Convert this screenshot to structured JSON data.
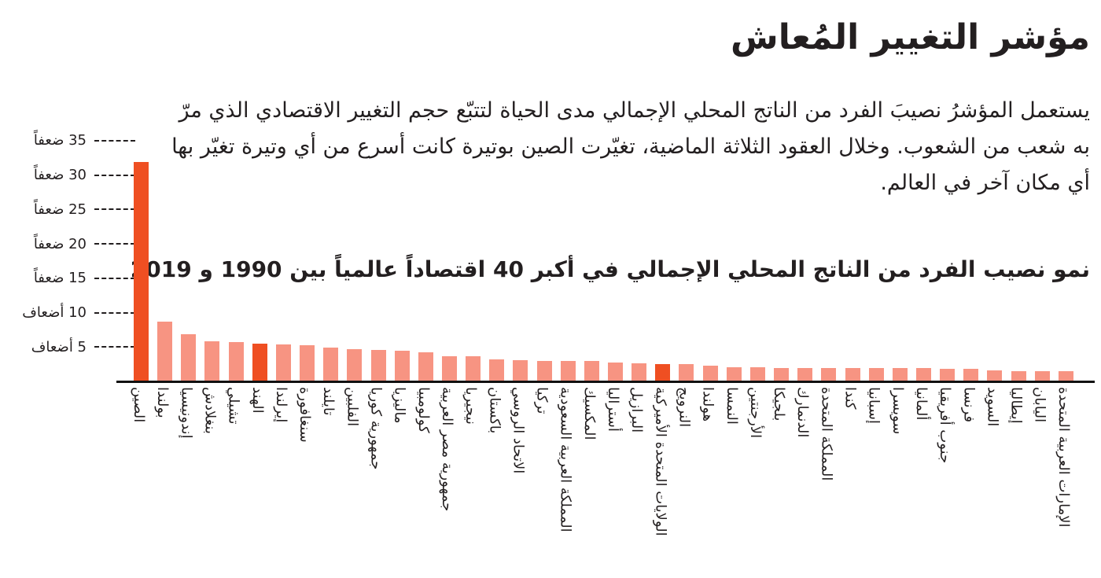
{
  "header": {
    "title": "مؤشر التغيير المُعاش",
    "body": "يستعمل المؤشرُ نصيبَ الفرد من الناتج المحلي الإجمالي مدى الحياة لتتبّع حجم التغيير الاقتصادي الذي مرّ به شعب من الشعوب. وخلال العقود الثلاثة الماضية، تغيّرت الصين بوتيرة كانت أسرع من أي وتيرة تغيّر بها أي مكان آخر في العالم.",
    "subtitle": "نمو نصيب الفرد من الناتج المحلي الإجمالي في أكبر 40 اقتصاداً عالمياً بين 1990 و 2019"
  },
  "colors": {
    "highlight": "#ef4f22",
    "normal": "#f79482",
    "axis": "#111111",
    "text": "#231f20"
  },
  "chart_data": {
    "type": "bar",
    "title": "نمو نصيب الفرد من الناتج المحلي الإجمالي في أكبر 40 اقتصاداً عالمياً بين 1990 و 2019",
    "xlabel": "",
    "ylabel": "",
    "ylim": [
      0,
      35
    ],
    "yticks": [
      {
        "value": 5,
        "label": "5 أضعاف"
      },
      {
        "value": 10,
        "label": "10 أضعاف"
      },
      {
        "value": 15,
        "label": "15 ضعفاً"
      },
      {
        "value": 20,
        "label": "20 ضعفاً"
      },
      {
        "value": 25,
        "label": "25 ضعفاً"
      },
      {
        "value": 30,
        "label": "30 ضعفاً"
      },
      {
        "value": 35,
        "label": "35 ضعفاً"
      }
    ],
    "grid": "dotted tick leaders only",
    "highlighted": [
      "الصين",
      "الهند",
      "الولايات المتحدة الأميركية"
    ],
    "categories": [
      "الصين",
      "بولندا",
      "إندونيسيا",
      "بنغلادش",
      "تشيلي",
      "الهند",
      "إيرلندا",
      "سنغافورة",
      "تايلند",
      "الفلبين",
      "جمهورية كوريا",
      "ماليزيا",
      "كولومبيا",
      "جمهورية مصر العربية",
      "نيجيريا",
      "باكستان",
      "الاتحاد الروسي",
      "تركيا",
      "المملكة العربية السعودية",
      "المكسيك",
      "أستراليا",
      "البرازيل",
      "الولايات المتحدة الأميركية",
      "النرويج",
      "هولندا",
      "النمسا",
      "الأرجنتين",
      "بلجيكا",
      "الدنمارك",
      "المملكة المتحدة",
      "كندا",
      "إسبانيا",
      "سويسرا",
      "ألمانيا",
      "جنوب أفريقيا",
      "فرنسا",
      "السويد",
      "إيطاليا",
      "اليابان",
      "الإمارات العربية المتحدة"
    ],
    "values": [
      32.0,
      8.8,
      7.0,
      5.9,
      5.8,
      5.6,
      5.5,
      5.4,
      5.0,
      4.8,
      4.7,
      4.6,
      4.4,
      3.8,
      3.8,
      3.3,
      3.2,
      3.1,
      3.1,
      3.1,
      2.9,
      2.8,
      2.6,
      2.6,
      2.4,
      2.2,
      2.2,
      2.1,
      2.1,
      2.1,
      2.1,
      2.1,
      2.1,
      2.1,
      1.9,
      1.9,
      1.7,
      1.6,
      1.6,
      1.6
    ]
  }
}
